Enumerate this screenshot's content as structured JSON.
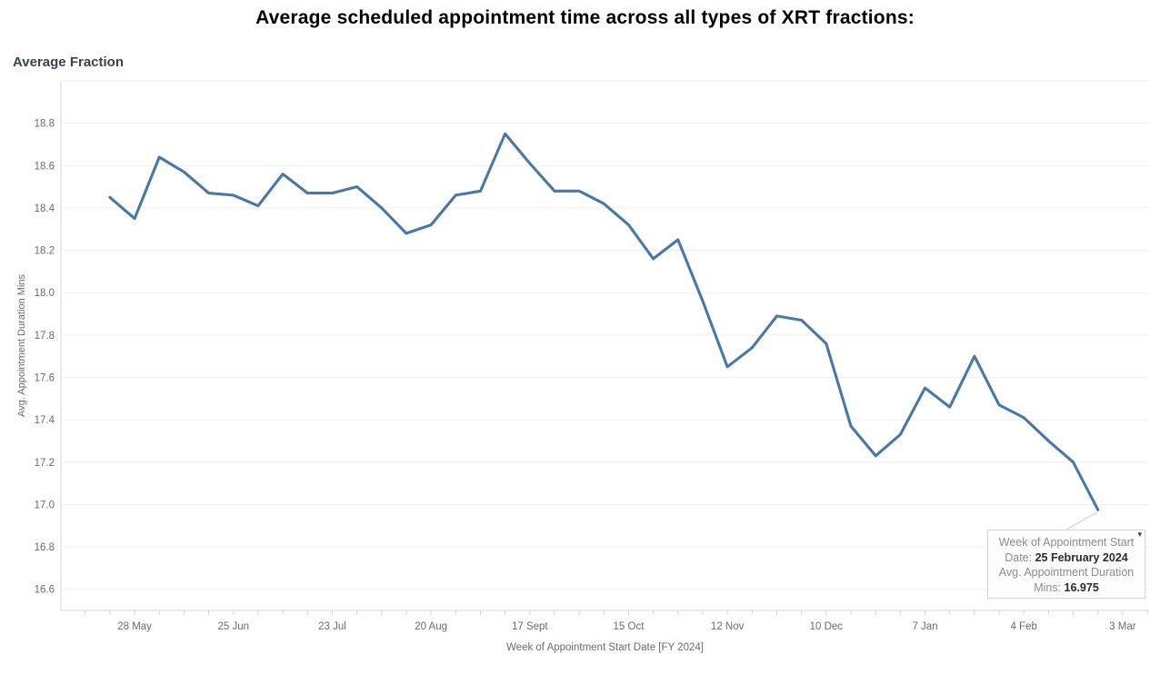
{
  "page": {
    "title": "Average scheduled appointment time across all types of XRT fractions:"
  },
  "chart": {
    "title": "Average Fraction"
  },
  "chart_data": {
    "type": "line",
    "title": "Average Fraction",
    "xlabel": "Week of Appointment Start Date [FY 2024]",
    "ylabel": "Avg. Appointment Duration Mins",
    "ylim": [
      16.5,
      19.0
    ],
    "y_ticks": [
      16.6,
      16.8,
      17.0,
      17.2,
      17.4,
      17.6,
      17.8,
      18.0,
      18.2,
      18.4,
      18.6,
      18.8
    ],
    "grid": "horizontal",
    "legend": "none",
    "x_tick_labels": [
      "28 May",
      "25 Jun",
      "23 Jul",
      "20 Aug",
      "17 Sept",
      "15 Oct",
      "12 Nov",
      "10 Dec",
      "7 Jan",
      "4 Feb",
      "3 Mar"
    ],
    "x_tick_label_week_indices": [
      1,
      5,
      9,
      13,
      17,
      21,
      25,
      29,
      33,
      37,
      41
    ],
    "series": [
      {
        "name": "Avg. Appointment Duration Mins",
        "x": [
          "21 May",
          "28 May",
          "4 Jun",
          "11 Jun",
          "18 Jun",
          "25 Jun",
          "2 Jul",
          "9 Jul",
          "16 Jul",
          "23 Jul",
          "30 Jul",
          "6 Aug",
          "13 Aug",
          "20 Aug",
          "27 Aug",
          "3 Sept",
          "10 Sept",
          "17 Sept",
          "24 Sept",
          "1 Oct",
          "8 Oct",
          "15 Oct",
          "22 Oct",
          "29 Oct",
          "5 Nov",
          "12 Nov",
          "19 Nov",
          "26 Nov",
          "3 Dec",
          "10 Dec",
          "17 Dec",
          "24 Dec",
          "31 Dec",
          "7 Jan",
          "14 Jan",
          "21 Jan",
          "28 Jan",
          "4 Feb",
          "11 Feb",
          "18 Feb",
          "25 Feb"
        ],
        "values": [
          18.45,
          18.35,
          18.64,
          18.57,
          18.47,
          18.46,
          18.41,
          18.56,
          18.47,
          18.47,
          18.5,
          18.4,
          18.28,
          18.32,
          18.46,
          18.48,
          18.75,
          18.61,
          18.48,
          18.48,
          18.42,
          18.32,
          18.16,
          18.25,
          17.96,
          17.65,
          17.74,
          17.89,
          17.87,
          17.76,
          17.37,
          17.23,
          17.33,
          17.55,
          17.46,
          17.7,
          17.47,
          17.41,
          17.3,
          17.2,
          16.975
        ]
      }
    ]
  },
  "tooltip": {
    "lines": [
      {
        "text": "Week of Appointment Start",
        "bold": ""
      },
      {
        "text": "Date: ",
        "bold": "25 February 2024"
      },
      {
        "text": "Avg. Appointment Duration",
        "bold": ""
      },
      {
        "text": "Mins: ",
        "bold": "16.975"
      }
    ],
    "hovered_point": {
      "date": "25 February 2024",
      "value": 16.975
    }
  },
  "icons": {
    "tooltip_caret": "▾"
  },
  "colors": {
    "line": "#4878a8",
    "grid": "#efefef",
    "plot_border": "#ececec",
    "axis_line": "#d9d9d9",
    "tick_mark": "#d4d4d4",
    "axis_text": "#6b6b6b",
    "title": "#000000",
    "chart_title": "#39434f",
    "tooltip_bg": "#fdfdfd",
    "tooltip_border": "#d6d6d6",
    "tooltip_text": "#8c8c8c",
    "tooltip_value": "#2b2b2b",
    "callout_line": "#c9c9c9"
  }
}
